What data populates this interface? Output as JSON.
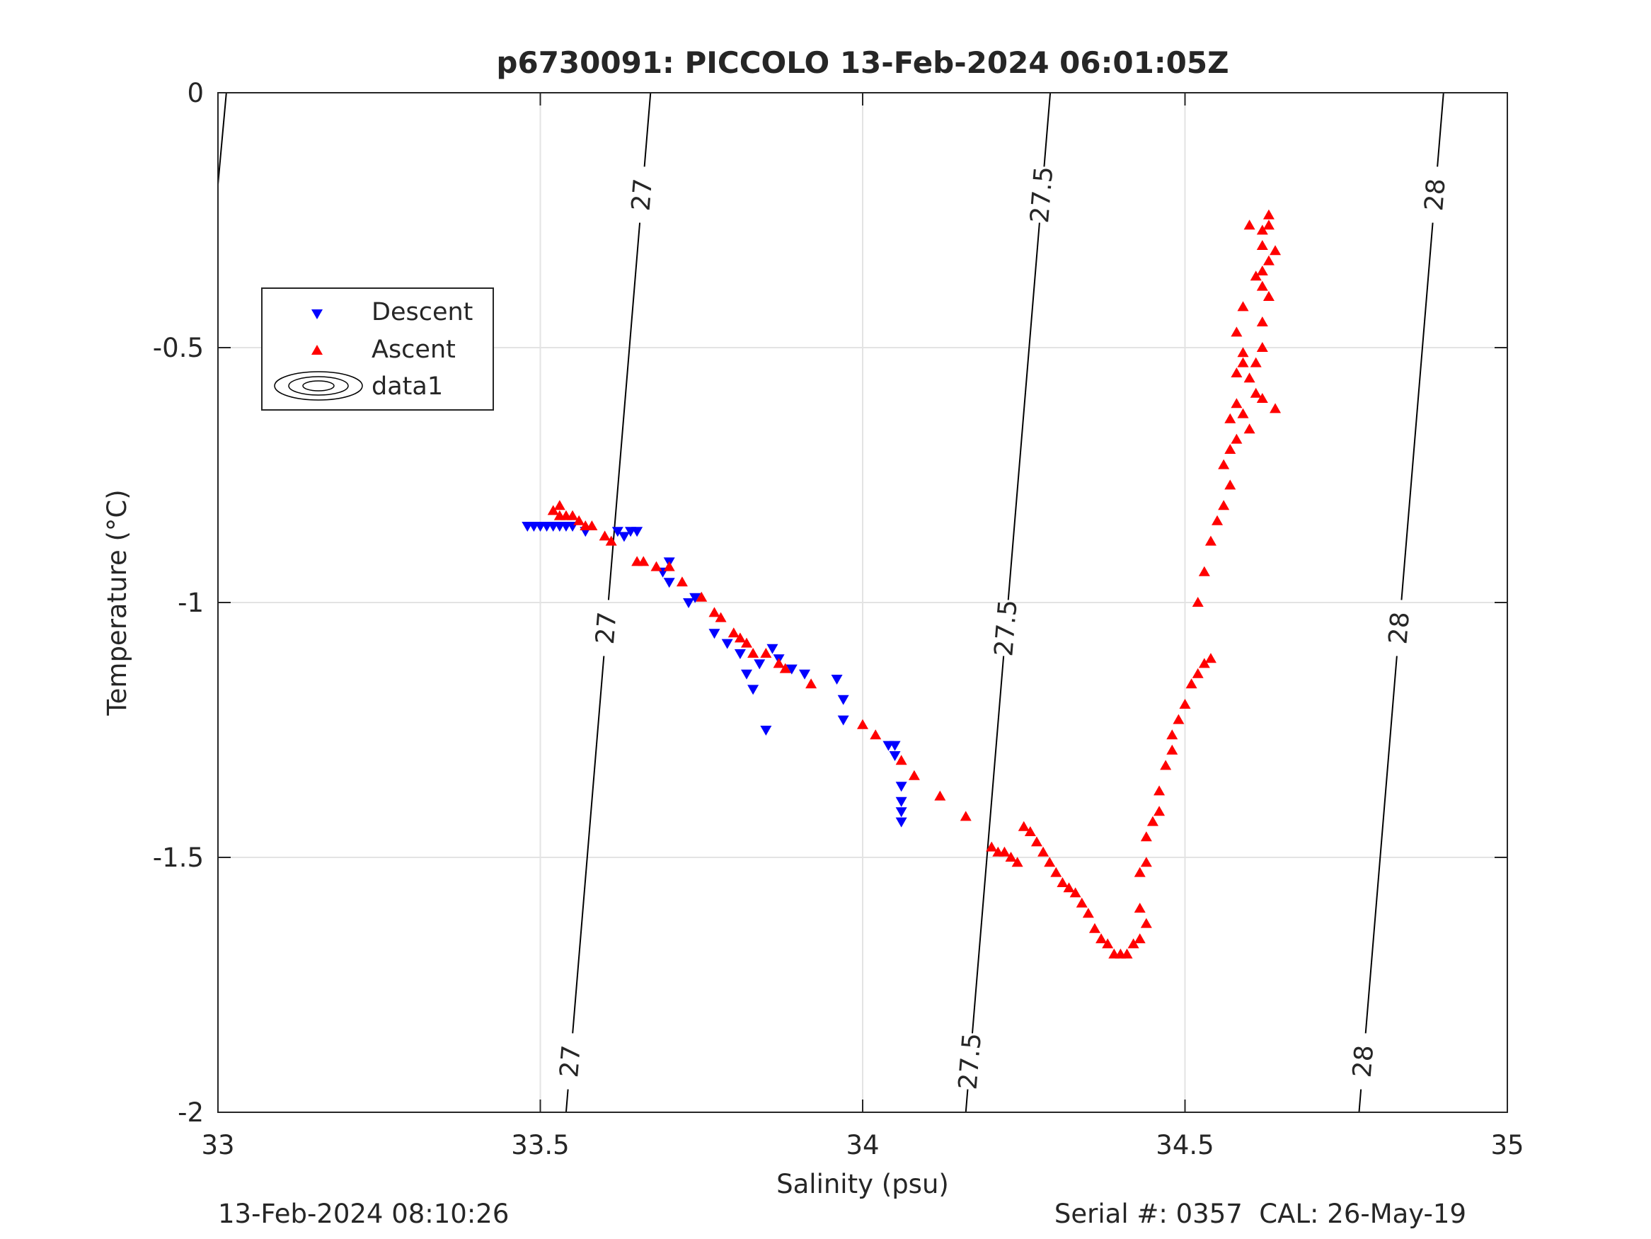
{
  "footer": {
    "timestamp": "13-Feb-2024 08:10:26",
    "serial": "Serial #: 0357  CAL: 26-May-19"
  },
  "chart_data": {
    "type": "scatter",
    "title": "p6730091: PICCOLO 13-Feb-2024 06:01:05Z",
    "xlabel": "Salinity (psu)",
    "ylabel": "Temperature (°C)",
    "xlim": [
      33,
      35
    ],
    "ylim": [
      -2,
      0
    ],
    "xticks": [
      33,
      33.5,
      34,
      34.5,
      35
    ],
    "xtick_labels": [
      "33",
      "33.5",
      "34",
      "34.5",
      "35"
    ],
    "yticks": [
      -2,
      -1.5,
      -1,
      -0.5,
      0
    ],
    "ytick_labels": [
      "-2",
      "-1.5",
      "-1",
      "-0.5",
      "0"
    ],
    "grid": true,
    "legend_position": "upper-left",
    "legend": [
      {
        "label": "Descent",
        "marker": "triangle-down",
        "color": "#0000ff"
      },
      {
        "label": "Ascent",
        "marker": "triangle-up",
        "color": "#ff0000"
      },
      {
        "label": "data1",
        "marker": "contour",
        "color": "#000000"
      }
    ],
    "series": [
      {
        "name": "Descent",
        "marker": "triangle-down",
        "color": "#0000ff",
        "points": [
          [
            33.48,
            -0.85
          ],
          [
            33.49,
            -0.85
          ],
          [
            33.5,
            -0.85
          ],
          [
            33.51,
            -0.85
          ],
          [
            33.52,
            -0.85
          ],
          [
            33.53,
            -0.85
          ],
          [
            33.54,
            -0.85
          ],
          [
            33.55,
            -0.85
          ],
          [
            33.57,
            -0.86
          ],
          [
            33.62,
            -0.86
          ],
          [
            33.63,
            -0.87
          ],
          [
            33.64,
            -0.86
          ],
          [
            33.65,
            -0.86
          ],
          [
            33.69,
            -0.94
          ],
          [
            33.7,
            -0.92
          ],
          [
            33.7,
            -0.96
          ],
          [
            33.73,
            -1.0
          ],
          [
            33.74,
            -0.99
          ],
          [
            33.77,
            -1.06
          ],
          [
            33.79,
            -1.08
          ],
          [
            33.81,
            -1.1
          ],
          [
            33.82,
            -1.14
          ],
          [
            33.83,
            -1.17
          ],
          [
            33.84,
            -1.12
          ],
          [
            33.85,
            -1.25
          ],
          [
            33.86,
            -1.09
          ],
          [
            33.87,
            -1.11
          ],
          [
            33.89,
            -1.13
          ],
          [
            33.91,
            -1.14
          ],
          [
            33.96,
            -1.15
          ],
          [
            33.97,
            -1.19
          ],
          [
            33.97,
            -1.23
          ],
          [
            34.04,
            -1.28
          ],
          [
            34.05,
            -1.28
          ],
          [
            34.05,
            -1.3
          ],
          [
            34.06,
            -1.36
          ],
          [
            34.06,
            -1.39
          ],
          [
            34.06,
            -1.41
          ],
          [
            34.06,
            -1.43
          ]
        ]
      },
      {
        "name": "Ascent",
        "marker": "triangle-up",
        "color": "#ff0000",
        "points": [
          [
            33.52,
            -0.82
          ],
          [
            33.53,
            -0.81
          ],
          [
            33.53,
            -0.83
          ],
          [
            33.54,
            -0.83
          ],
          [
            33.55,
            -0.83
          ],
          [
            33.56,
            -0.84
          ],
          [
            33.57,
            -0.85
          ],
          [
            33.58,
            -0.85
          ],
          [
            33.6,
            -0.87
          ],
          [
            33.61,
            -0.88
          ],
          [
            33.65,
            -0.92
          ],
          [
            33.66,
            -0.92
          ],
          [
            33.68,
            -0.93
          ],
          [
            33.7,
            -0.93
          ],
          [
            33.72,
            -0.96
          ],
          [
            33.75,
            -0.99
          ],
          [
            33.77,
            -1.02
          ],
          [
            33.78,
            -1.03
          ],
          [
            33.8,
            -1.06
          ],
          [
            33.81,
            -1.07
          ],
          [
            33.82,
            -1.08
          ],
          [
            33.83,
            -1.1
          ],
          [
            33.85,
            -1.1
          ],
          [
            33.87,
            -1.12
          ],
          [
            33.88,
            -1.13
          ],
          [
            33.92,
            -1.16
          ],
          [
            34.0,
            -1.24
          ],
          [
            34.02,
            -1.26
          ],
          [
            34.06,
            -1.31
          ],
          [
            34.08,
            -1.34
          ],
          [
            34.12,
            -1.38
          ],
          [
            34.16,
            -1.42
          ],
          [
            34.2,
            -1.48
          ],
          [
            34.21,
            -1.49
          ],
          [
            34.22,
            -1.49
          ],
          [
            34.23,
            -1.5
          ],
          [
            34.24,
            -1.51
          ],
          [
            34.25,
            -1.44
          ],
          [
            34.26,
            -1.45
          ],
          [
            34.27,
            -1.47
          ],
          [
            34.28,
            -1.49
          ],
          [
            34.29,
            -1.51
          ],
          [
            34.3,
            -1.53
          ],
          [
            34.31,
            -1.55
          ],
          [
            34.32,
            -1.56
          ],
          [
            34.33,
            -1.57
          ],
          [
            34.34,
            -1.59
          ],
          [
            34.35,
            -1.61
          ],
          [
            34.36,
            -1.64
          ],
          [
            34.37,
            -1.66
          ],
          [
            34.38,
            -1.67
          ],
          [
            34.39,
            -1.69
          ],
          [
            34.4,
            -1.69
          ],
          [
            34.41,
            -1.69
          ],
          [
            34.42,
            -1.67
          ],
          [
            34.43,
            -1.66
          ],
          [
            34.44,
            -1.63
          ],
          [
            34.43,
            -1.6
          ],
          [
            34.43,
            -1.53
          ],
          [
            34.44,
            -1.51
          ],
          [
            34.44,
            -1.46
          ],
          [
            34.45,
            -1.43
          ],
          [
            34.46,
            -1.41
          ],
          [
            34.46,
            -1.37
          ],
          [
            34.47,
            -1.32
          ],
          [
            34.48,
            -1.29
          ],
          [
            34.48,
            -1.26
          ],
          [
            34.49,
            -1.23
          ],
          [
            34.5,
            -1.2
          ],
          [
            34.51,
            -1.16
          ],
          [
            34.52,
            -1.14
          ],
          [
            34.53,
            -1.12
          ],
          [
            34.54,
            -1.11
          ],
          [
            34.52,
            -1.0
          ],
          [
            34.53,
            -0.94
          ],
          [
            34.54,
            -0.88
          ],
          [
            34.55,
            -0.84
          ],
          [
            34.56,
            -0.81
          ],
          [
            34.57,
            -0.77
          ],
          [
            34.56,
            -0.73
          ],
          [
            34.57,
            -0.7
          ],
          [
            34.58,
            -0.68
          ],
          [
            34.57,
            -0.64
          ],
          [
            34.58,
            -0.61
          ],
          [
            34.59,
            -0.63
          ],
          [
            34.6,
            -0.66
          ],
          [
            34.58,
            -0.55
          ],
          [
            34.59,
            -0.53
          ],
          [
            34.6,
            -0.56
          ],
          [
            34.61,
            -0.59
          ],
          [
            34.62,
            -0.6
          ],
          [
            34.61,
            -0.53
          ],
          [
            34.62,
            -0.5
          ],
          [
            34.62,
            -0.45
          ],
          [
            34.63,
            -0.4
          ],
          [
            34.62,
            -0.35
          ],
          [
            34.63,
            -0.33
          ],
          [
            34.62,
            -0.3
          ],
          [
            34.62,
            -0.27
          ],
          [
            34.63,
            -0.24
          ],
          [
            34.63,
            -0.26
          ],
          [
            34.64,
            -0.31
          ],
          [
            34.64,
            -0.62
          ],
          [
            34.62,
            -0.38
          ],
          [
            34.61,
            -0.36
          ],
          [
            34.6,
            -0.26
          ],
          [
            34.59,
            -0.42
          ],
          [
            34.58,
            -0.47
          ],
          [
            34.59,
            -0.51
          ]
        ]
      }
    ],
    "density_contours": [
      {
        "label": "27",
        "sigma": 27
      },
      {
        "label": "27.5",
        "sigma": 27.5
      },
      {
        "label": "28",
        "sigma": 28
      }
    ]
  }
}
